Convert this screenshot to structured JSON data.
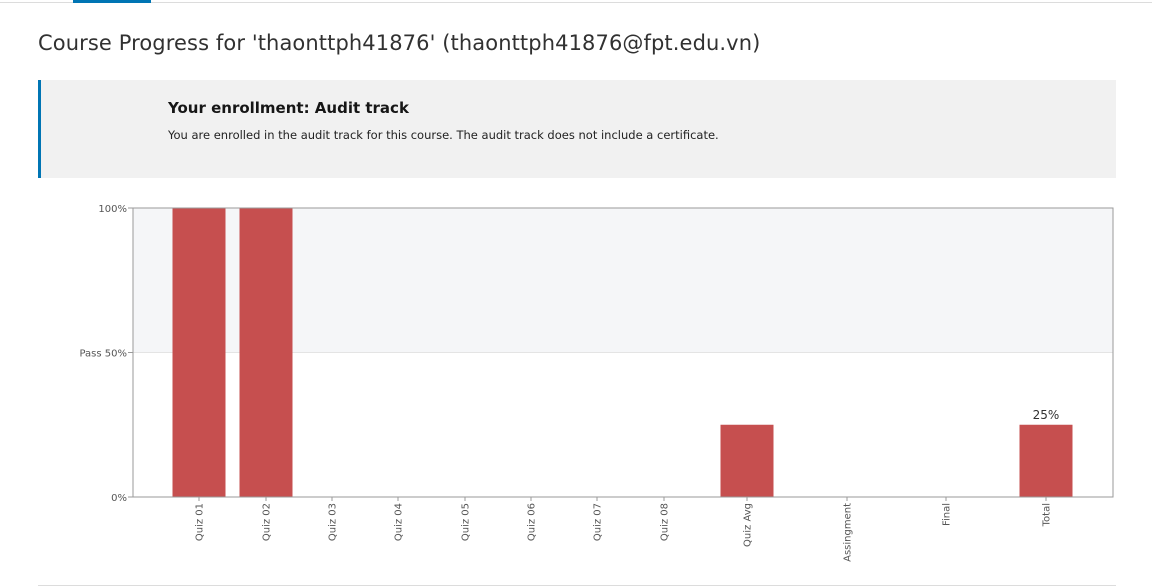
{
  "page": {
    "title": "Course Progress for 'thaonttph41876' (thaonttph41876@fpt.edu.vn)"
  },
  "enrollment": {
    "heading": "Your enrollment: Audit track",
    "message": "You are enrolled in the audit track for this course. The audit track does not include a certificate."
  },
  "colors": {
    "accent": "#0075b4",
    "bar": "#c64f4f",
    "pass_region": "#f5f6f8",
    "axis": "#9a9a9a"
  },
  "chart_data": {
    "type": "bar",
    "categories": [
      "Quiz 01",
      "Quiz 02",
      "Quiz 03",
      "Quiz 04",
      "Quiz 05",
      "Quiz 06",
      "Quiz 07",
      "Quiz 08",
      "Quiz Avg",
      "Assingment",
      "Final",
      "Total"
    ],
    "values": [
      100,
      100,
      0,
      0,
      0,
      0,
      0,
      0,
      25,
      0,
      0,
      25
    ],
    "ylim": [
      0,
      100
    ],
    "yticks": [
      {
        "value": 100,
        "label": "100%"
      },
      {
        "value": 50,
        "label": "Pass 50%"
      },
      {
        "value": 0,
        "label": "0%"
      }
    ],
    "pass_threshold": 50,
    "annotations": [
      {
        "category": "Total",
        "label": "25%"
      }
    ],
    "title": "",
    "xlabel": "",
    "ylabel": "",
    "grid": false,
    "legend": "none"
  }
}
